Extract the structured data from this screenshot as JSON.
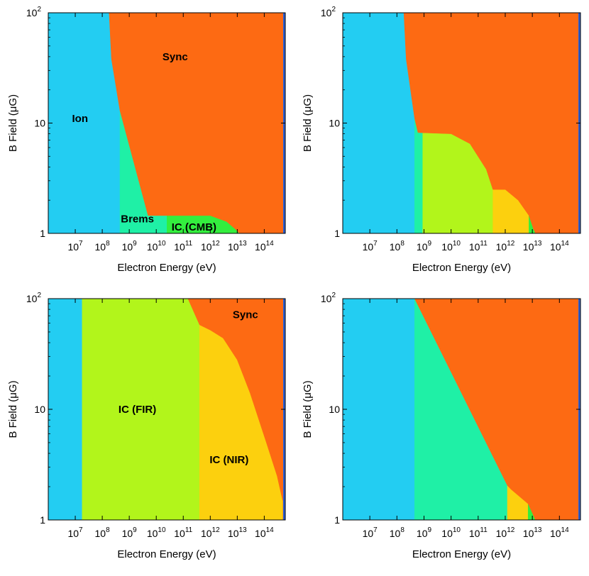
{
  "colors": {
    "Ion": "#23cdf2",
    "Brems": "#1ff0a6",
    "IC (CMB)": "#33ee3e",
    "IC (FIR)": "#b2f51b",
    "IC (NIR)": "#fcd00e",
    "Sync": "#fd6a13",
    "edge": "#2a5fd6"
  },
  "chart_data": [
    {
      "type": "area",
      "title": "",
      "xlabel": "Electron Energy (eV)",
      "ylabel_prefix": "B Field (",
      "ylabel_mu": "μ",
      "ylabel_suffix": "G)",
      "xscale": "log",
      "yscale": "log",
      "xlim": [
        1000000,
        600000000000000
      ],
      "ylim": [
        1,
        100
      ],
      "x_ticks": [
        {
          "base": "10",
          "exp": "7",
          "value": 10000000
        },
        {
          "base": "10",
          "exp": "8",
          "value": 100000000
        },
        {
          "base": "10",
          "exp": "9",
          "value": 1000000000
        },
        {
          "base": "10",
          "exp": "10",
          "value": 10000000000
        },
        {
          "base": "10",
          "exp": "11",
          "value": 100000000000
        },
        {
          "base": "10",
          "exp": "12",
          "value": 1000000000000
        },
        {
          "base": "10",
          "exp": "13",
          "value": 10000000000000
        },
        {
          "base": "10",
          "exp": "14",
          "value": 100000000000000
        }
      ],
      "y_ticks": [
        {
          "base": "1",
          "exp": "",
          "value": 1
        },
        {
          "base": "10",
          "exp": "",
          "value": 10
        },
        {
          "base": "10",
          "exp": "2",
          "value": 100
        }
      ],
      "regions": [
        {
          "name": "Ion",
          "polygon": [
            [
              1000000.0,
              1
            ],
            [
              450000000.0,
              1
            ],
            [
              450000000.0,
              13
            ],
            [
              220000000.0,
              38
            ],
            [
              180000000.0,
              100
            ],
            [
              1000000.0,
              100
            ]
          ]
        },
        {
          "name": "Brems",
          "polygon": [
            [
              450000000.0,
              1
            ],
            [
              25000000000.0,
              1
            ],
            [
              25000000000.0,
              1.45
            ],
            [
              5000000000.0,
              1.45
            ],
            [
              450000000.0,
              13
            ]
          ]
        },
        {
          "name": "IC (CMB)",
          "polygon": [
            [
              25000000000.0,
              1
            ],
            [
              12000000000000.0,
              1
            ],
            [
              9000000000000.0,
              1.08
            ],
            [
              4000000000000.0,
              1.28
            ],
            [
              1000000000000.0,
              1.45
            ],
            [
              25000000000.0,
              1.45
            ]
          ]
        },
        {
          "name": "Sync",
          "polygon": [
            [
              180000000.0,
              100
            ],
            [
              220000000.0,
              38
            ],
            [
              450000000.0,
              13
            ],
            [
              5000000000.0,
              1.45
            ],
            [
              1000000000000.0,
              1.45
            ],
            [
              4000000000000.0,
              1.28
            ],
            [
              9000000000000.0,
              1.08
            ],
            [
              12000000000000.0,
              1
            ],
            [
              480000000000000.0,
              1
            ],
            [
              480000000000000.0,
              100
            ]
          ]
        }
      ],
      "labels": [
        {
          "text": "Ion",
          "x": 15000000,
          "y": 11
        },
        {
          "text": "Sync",
          "x": 50000000000,
          "y": 40
        },
        {
          "text": "Brems",
          "x": 2000000000,
          "y": 1.35
        },
        {
          "text": "IC (CMB)",
          "x": 250000000000,
          "y": 1.14
        }
      ]
    },
    {
      "type": "area",
      "title": "",
      "xlabel": "Electron Energy (eV)",
      "ylabel_prefix": "B Field (",
      "ylabel_mu": "μ",
      "ylabel_suffix": "G)",
      "xscale": "log",
      "yscale": "log",
      "xlim": [
        1000000,
        600000000000000
      ],
      "ylim": [
        1,
        100
      ],
      "x_ticks": [
        {
          "base": "10",
          "exp": "7",
          "value": 10000000
        },
        {
          "base": "10",
          "exp": "8",
          "value": 100000000
        },
        {
          "base": "10",
          "exp": "9",
          "value": 1000000000
        },
        {
          "base": "10",
          "exp": "10",
          "value": 10000000000
        },
        {
          "base": "10",
          "exp": "11",
          "value": 100000000000
        },
        {
          "base": "10",
          "exp": "12",
          "value": 1000000000000
        },
        {
          "base": "10",
          "exp": "13",
          "value": 10000000000000
        },
        {
          "base": "10",
          "exp": "14",
          "value": 100000000000000
        }
      ],
      "y_ticks": [
        {
          "base": "1",
          "exp": "",
          "value": 1
        },
        {
          "base": "10",
          "exp": "",
          "value": 10
        },
        {
          "base": "10",
          "exp": "2",
          "value": 100
        }
      ],
      "regions": [
        {
          "name": "Ion",
          "polygon": [
            [
              1000000.0,
              1
            ],
            [
              450000000.0,
              1
            ],
            [
              450000000.0,
              11
            ],
            [
              220000000.0,
              38
            ],
            [
              180000000.0,
              100
            ],
            [
              1000000.0,
              100
            ]
          ]
        },
        {
          "name": "Brems",
          "polygon": [
            [
              450000000.0,
              1
            ],
            [
              900000000.0,
              1
            ],
            [
              900000000.0,
              8.2
            ],
            [
              600000000.0,
              8.2
            ],
            [
              450000000.0,
              11
            ]
          ]
        },
        {
          "name": "IC (FIR)",
          "polygon": [
            [
              900000000.0,
              1
            ],
            [
              350000000000.0,
              1
            ],
            [
              350000000000.0,
              2.5
            ],
            [
              200000000000.0,
              3.8
            ],
            [
              50000000000.0,
              6.5
            ],
            [
              10000000000.0,
              8
            ],
            [
              900000000.0,
              8.2
            ]
          ]
        },
        {
          "name": "IC (NIR)",
          "polygon": [
            [
              350000000000.0,
              1
            ],
            [
              7500000000000.0,
              1
            ],
            [
              7500000000000.0,
              1.45
            ],
            [
              3000000000000.0,
              2
            ],
            [
              1000000000000.0,
              2.5
            ],
            [
              350000000000.0,
              2.5
            ]
          ]
        },
        {
          "name": "IC (CMB)",
          "polygon": [
            [
              7500000000000.0,
              1
            ],
            [
              13000000000000.0,
              1
            ],
            [
              11000000000000.0,
              1.1
            ],
            [
              7500000000000.0,
              1.45
            ]
          ]
        },
        {
          "name": "Sync",
          "polygon": [
            [
              180000000.0,
              100
            ],
            [
              220000000.0,
              38
            ],
            [
              450000000.0,
              11
            ],
            [
              600000000.0,
              8.2
            ],
            [
              10000000000.0,
              8
            ],
            [
              50000000000.0,
              6.5
            ],
            [
              200000000000.0,
              3.8
            ],
            [
              350000000000.0,
              2.5
            ],
            [
              1000000000000.0,
              2.5
            ],
            [
              3000000000000.0,
              2
            ],
            [
              7500000000000.0,
              1.45
            ],
            [
              11000000000000.0,
              1.1
            ],
            [
              13000000000000.0,
              1
            ],
            [
              480000000000000.0,
              1
            ],
            [
              480000000000000.0,
              100
            ]
          ]
        }
      ],
      "labels": []
    },
    {
      "type": "area",
      "title": "",
      "xlabel": "Electron Energy (eV)",
      "ylabel_prefix": "B Field (",
      "ylabel_mu": "μ",
      "ylabel_suffix": "G)",
      "xscale": "log",
      "yscale": "log",
      "xlim": [
        1000000,
        600000000000000
      ],
      "ylim": [
        1,
        100
      ],
      "x_ticks": [
        {
          "base": "10",
          "exp": "7",
          "value": 10000000
        },
        {
          "base": "10",
          "exp": "8",
          "value": 100000000
        },
        {
          "base": "10",
          "exp": "9",
          "value": 1000000000
        },
        {
          "base": "10",
          "exp": "10",
          "value": 10000000000
        },
        {
          "base": "10",
          "exp": "11",
          "value": 100000000000
        },
        {
          "base": "10",
          "exp": "12",
          "value": 1000000000000
        },
        {
          "base": "10",
          "exp": "13",
          "value": 10000000000000
        },
        {
          "base": "10",
          "exp": "14",
          "value": 100000000000000
        }
      ],
      "y_ticks": [
        {
          "base": "1",
          "exp": "",
          "value": 1
        },
        {
          "base": "10",
          "exp": "",
          "value": 10
        },
        {
          "base": "10",
          "exp": "2",
          "value": 100
        }
      ],
      "regions": [
        {
          "name": "Ion",
          "polygon": [
            [
              1000000.0,
              1
            ],
            [
              18000000.0,
              1
            ],
            [
              18000000.0,
              100
            ],
            [
              1000000.0,
              100
            ]
          ]
        },
        {
          "name": "IC (FIR)",
          "polygon": [
            [
              18000000.0,
              1
            ],
            [
              400000000000.0,
              1
            ],
            [
              400000000000.0,
              58
            ],
            [
              150000000000.0,
              100
            ],
            [
              18000000.0,
              100
            ]
          ]
        },
        {
          "name": "IC (NIR)",
          "polygon": [
            [
              400000000000.0,
              1
            ],
            [
              480000000000000.0,
              1
            ],
            [
              480000000000000.0,
              1.5
            ],
            [
              300000000000000.0,
              2.5
            ],
            [
              120000000000000.0,
              5
            ],
            [
              30000000000000.0,
              14
            ],
            [
              10000000000000.0,
              28
            ],
            [
              3000000000000.0,
              44
            ],
            [
              1000000000000.0,
              52
            ],
            [
              400000000000.0,
              58
            ]
          ]
        },
        {
          "name": "Sync",
          "polygon": [
            [
              150000000000.0,
              100
            ],
            [
              400000000000.0,
              58
            ],
            [
              1000000000000.0,
              52
            ],
            [
              3000000000000.0,
              44
            ],
            [
              10000000000000.0,
              28
            ],
            [
              30000000000000.0,
              14
            ],
            [
              120000000000000.0,
              5
            ],
            [
              300000000000000.0,
              2.5
            ],
            [
              480000000000000.0,
              1.5
            ],
            [
              480000000000000.0,
              100
            ]
          ]
        }
      ],
      "labels": [
        {
          "text": "Sync",
          "x": 20000000000000,
          "y": 72
        },
        {
          "text": "IC (FIR)",
          "x": 2000000000,
          "y": 10
        },
        {
          "text": "IC (NIR)",
          "x": 5000000000000,
          "y": 3.5
        }
      ]
    },
    {
      "type": "area",
      "title": "",
      "xlabel": "Electron Energy (eV)",
      "ylabel_prefix": "B Field (",
      "ylabel_mu": "μ",
      "ylabel_suffix": "G)",
      "xscale": "log",
      "yscale": "log",
      "xlim": [
        1000000,
        600000000000000
      ],
      "ylim": [
        1,
        100
      ],
      "x_ticks": [
        {
          "base": "10",
          "exp": "7",
          "value": 10000000
        },
        {
          "base": "10",
          "exp": "8",
          "value": 100000000
        },
        {
          "base": "10",
          "exp": "9",
          "value": 1000000000
        },
        {
          "base": "10",
          "exp": "10",
          "value": 10000000000
        },
        {
          "base": "10",
          "exp": "11",
          "value": 100000000000
        },
        {
          "base": "10",
          "exp": "12",
          "value": 1000000000000
        },
        {
          "base": "10",
          "exp": "13",
          "value": 10000000000000
        },
        {
          "base": "10",
          "exp": "14",
          "value": 100000000000000
        }
      ],
      "y_ticks": [
        {
          "base": "1",
          "exp": "",
          "value": 1
        },
        {
          "base": "10",
          "exp": "",
          "value": 10
        },
        {
          "base": "10",
          "exp": "2",
          "value": 100
        }
      ],
      "regions": [
        {
          "name": "Ion",
          "polygon": [
            [
              1000000.0,
              1
            ],
            [
              450000000.0,
              1
            ],
            [
              450000000.0,
              100
            ],
            [
              1000000.0,
              100
            ]
          ]
        },
        {
          "name": "Brems",
          "polygon": [
            [
              450000000.0,
              1
            ],
            [
              1200000000000.0,
              1
            ],
            [
              1200000000000.0,
              2.05
            ],
            [
              450000000.0,
              100
            ]
          ]
        },
        {
          "name": "IC (NIR)",
          "polygon": [
            [
              1200000000000.0,
              1
            ],
            [
              7000000000000.0,
              1
            ],
            [
              7000000000000.0,
              1.4
            ],
            [
              1600000000000.0,
              1.9
            ],
            [
              1200000000000.0,
              2.05
            ]
          ]
        },
        {
          "name": "IC (CMB)",
          "polygon": [
            [
              7000000000000.0,
              1
            ],
            [
              13000000000000.0,
              1
            ],
            [
              11000000000000.0,
              1.1
            ],
            [
              7000000000000.0,
              1.4
            ]
          ]
        },
        {
          "name": "Sync",
          "polygon": [
            [
              450000000.0,
              100
            ],
            [
              1200000000000.0,
              2.05
            ],
            [
              1600000000000.0,
              1.9
            ],
            [
              7000000000000.0,
              1.4
            ],
            [
              11000000000000.0,
              1.1
            ],
            [
              13000000000000.0,
              1
            ],
            [
              480000000000000.0,
              1
            ],
            [
              480000000000000.0,
              100
            ]
          ]
        }
      ],
      "labels": []
    }
  ]
}
